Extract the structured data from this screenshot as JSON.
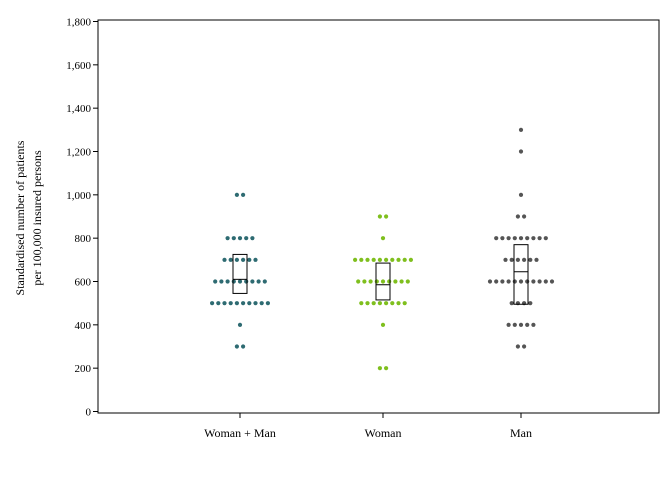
{
  "chart_data": {
    "type": "scatter",
    "subtype": "dot-plot-with-boxplot",
    "title": "",
    "ylabel_lines": [
      "Standardised number of patients",
      "per 100,000 insured persons"
    ],
    "ylim": [
      0,
      1800
    ],
    "yticks": [
      0,
      200,
      400,
      600,
      800,
      1000,
      1200,
      1400,
      1600,
      1800
    ],
    "ytick_labels": [
      "0",
      "200",
      "400",
      "600",
      "800",
      "1,000",
      "1,200",
      "1,400",
      "1,600",
      "1,800"
    ],
    "grid": false,
    "legend": "none",
    "categories": [
      "Woman + Man",
      "Woman",
      "Man"
    ],
    "series": [
      {
        "category": "Woman + Man",
        "color": "#2e6b72",
        "points": [
          {
            "y": 1000,
            "n": 2
          },
          {
            "y": 800,
            "n": 5
          },
          {
            "y": 700,
            "n": 6
          },
          {
            "y": 600,
            "n": 9
          },
          {
            "y": 500,
            "n": 10
          },
          {
            "y": 400,
            "n": 1
          },
          {
            "y": 300,
            "n": 2
          }
        ],
        "box": {
          "q1": 545,
          "median": 610,
          "q3": 725
        }
      },
      {
        "category": "Woman",
        "color": "#7fbf1e",
        "points": [
          {
            "y": 900,
            "n": 2
          },
          {
            "y": 800,
            "n": 1
          },
          {
            "y": 700,
            "n": 10
          },
          {
            "y": 600,
            "n": 9
          },
          {
            "y": 500,
            "n": 8
          },
          {
            "y": 400,
            "n": 1
          },
          {
            "y": 200,
            "n": 2
          }
        ],
        "box": {
          "q1": 515,
          "median": 585,
          "q3": 685
        }
      },
      {
        "category": "Man",
        "color": "#555555",
        "points": [
          {
            "y": 1300,
            "n": 1
          },
          {
            "y": 1200,
            "n": 1
          },
          {
            "y": 1000,
            "n": 1
          },
          {
            "y": 900,
            "n": 2
          },
          {
            "y": 800,
            "n": 9
          },
          {
            "y": 700,
            "n": 6
          },
          {
            "y": 600,
            "n": 11
          },
          {
            "y": 500,
            "n": 4
          },
          {
            "y": 400,
            "n": 5
          },
          {
            "y": 300,
            "n": 2
          }
        ],
        "box": {
          "q1": 495,
          "median": 645,
          "q3": 770
        }
      }
    ]
  }
}
